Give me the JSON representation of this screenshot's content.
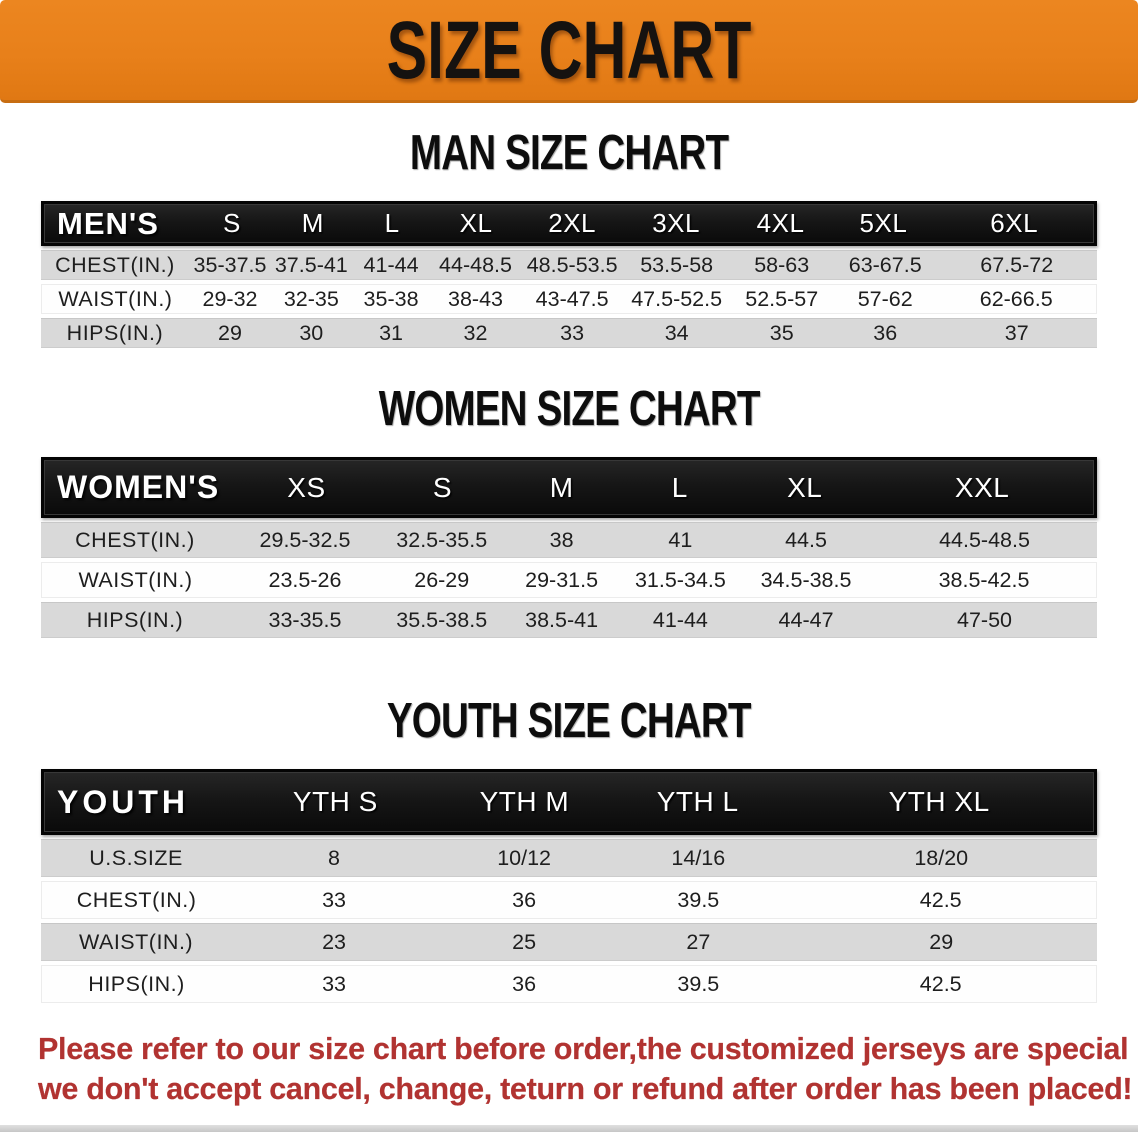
{
  "banner": {
    "title": "SIZE CHART"
  },
  "tables": [
    {
      "slug": "man",
      "heading": "MAN SIZE CHART",
      "header_label": "MEN'S",
      "columns": [
        "S",
        "M",
        "L",
        "XL",
        "2XL",
        "3XL",
        "4XL",
        "5XL",
        "6XL"
      ],
      "rows": [
        {
          "label": "CHEST(IN.)",
          "values": [
            "35-37.5",
            "37.5-41",
            "41-44",
            "44-48.5",
            "48.5-53.5",
            "53.5-58",
            "58-63",
            "63-67.5",
            "67.5-72"
          ]
        },
        {
          "label": "WAIST(IN.)",
          "values": [
            "29-32",
            "32-35",
            "35-38",
            "38-43",
            "43-47.5",
            "47.5-52.5",
            "52.5-57",
            "57-62",
            "62-66.5"
          ]
        },
        {
          "label": "HIPS(IN.)",
          "values": [
            "29",
            "30",
            "31",
            "32",
            "33",
            "34",
            "35",
            "36",
            "37"
          ]
        }
      ]
    },
    {
      "slug": "women",
      "heading": "WOMEN SIZE CHART",
      "header_label": "WOMEN'S",
      "columns": [
        "XS",
        "S",
        "M",
        "L",
        "XL",
        "XXL"
      ],
      "rows": [
        {
          "label": "CHEST(IN.)",
          "values": [
            "29.5-32.5",
            "32.5-35.5",
            "38",
            "41",
            "44.5",
            "44.5-48.5"
          ]
        },
        {
          "label": "WAIST(IN.)",
          "values": [
            "23.5-26",
            "26-29",
            "29-31.5",
            "31.5-34.5",
            "34.5-38.5",
            "38.5-42.5"
          ]
        },
        {
          "label": "HIPS(IN.)",
          "values": [
            "33-35.5",
            "35.5-38.5",
            "38.5-41",
            "41-44",
            "44-47",
            "47-50"
          ]
        }
      ]
    },
    {
      "slug": "youth",
      "heading": "YOUTH SIZE CHART",
      "header_label": "YOUTH",
      "columns": [
        "YTH S",
        "YTH M",
        "YTH L",
        "YTH XL"
      ],
      "rows": [
        {
          "label": "U.S.SIZE",
          "values": [
            "8",
            "10/12",
            "14/16",
            "18/20"
          ]
        },
        {
          "label": "CHEST(IN.)",
          "values": [
            "33",
            "36",
            "39.5",
            "42.5"
          ]
        },
        {
          "label": "WAIST(IN.)",
          "values": [
            "23",
            "25",
            "27",
            "29"
          ]
        },
        {
          "label": "HIPS(IN.)",
          "values": [
            "33",
            "36",
            "39.5",
            "42.5"
          ]
        }
      ]
    }
  ],
  "disclaimer": {
    "line1": "Please refer to our size chart before order,the customized jerseys are special products,",
    "line2": "we don't accept cancel, change, teturn or refund after order has been placed!"
  },
  "colors": {
    "banner_bg": "#e8801a",
    "banner_text": "#151210",
    "header_bar_bg": "#141414",
    "row_gray": "#d9d9d9",
    "disclaimer_red": "#b13331"
  }
}
